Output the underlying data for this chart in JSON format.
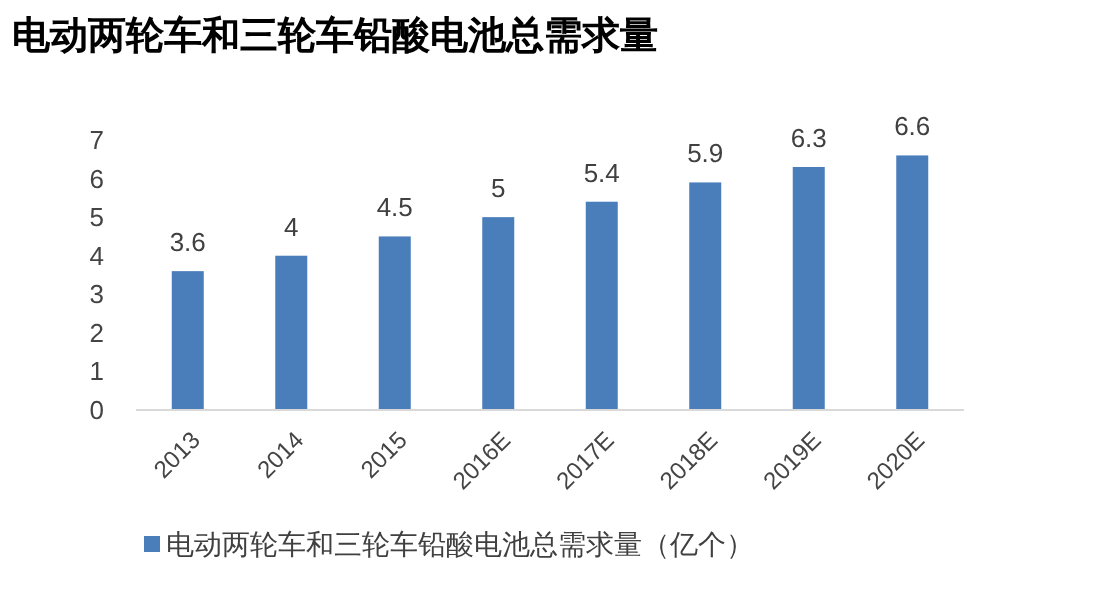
{
  "chart_data": {
    "type": "bar",
    "title": "电动两轮车和三轮车铅酸电池总需求量",
    "categories": [
      "2013",
      "2014",
      "2015",
      "2016E",
      "2017E",
      "2018E",
      "2019E",
      "2020E"
    ],
    "series": [
      {
        "name": "电动两轮车和三轮车铅酸电池总需求量（亿个）",
        "color": "#4a7ebb",
        "values": [
          3.6,
          4,
          4.5,
          5,
          5.4,
          5.9,
          6.3,
          6.6
        ]
      }
    ],
    "ylim": [
      0,
      7
    ],
    "yticks": [
      0,
      1,
      2,
      3,
      4,
      5,
      6,
      7
    ],
    "data_labels": true,
    "legend": "bottom",
    "grid": false
  }
}
